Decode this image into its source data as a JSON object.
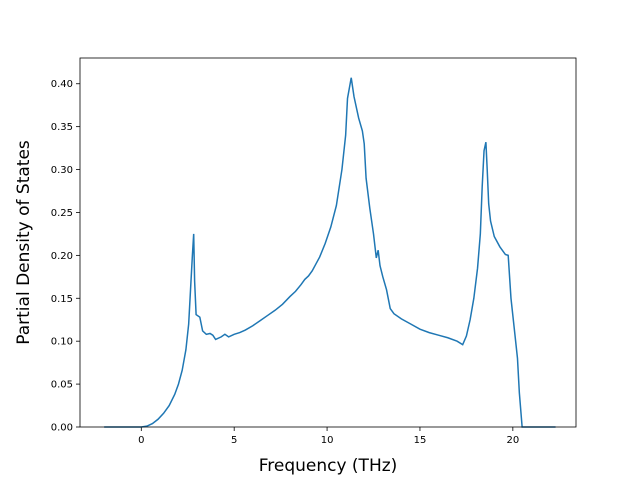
{
  "chart_data": {
    "type": "line",
    "title": "",
    "xlabel": "Frequency (THz)",
    "ylabel": "Partial Density of States",
    "xlim": [
      -3.3,
      23.4
    ],
    "ylim": [
      0.0,
      0.43
    ],
    "xticks": [
      0,
      5,
      10,
      15,
      20
    ],
    "yticks": [
      0.0,
      0.05,
      0.1,
      0.15,
      0.2,
      0.25,
      0.3,
      0.35,
      0.4
    ],
    "grid": false,
    "line_color": "#1f77b4",
    "series": [
      {
        "x": [
          -2.0,
          -1.0,
          0.0,
          0.3,
          0.6,
          0.9,
          1.2,
          1.5,
          1.8,
          2.0,
          2.2,
          2.4,
          2.55,
          2.65,
          2.75,
          2.82,
          2.87,
          2.95,
          3.15,
          3.3,
          3.5,
          3.7,
          3.85,
          4.0,
          4.3,
          4.5,
          4.7,
          5.0,
          5.3,
          5.6,
          6.0,
          6.4,
          6.8,
          7.2,
          7.6,
          8.0,
          8.3,
          8.6,
          8.8,
          9.0,
          9.2,
          9.4,
          9.6,
          9.9,
          10.2,
          10.5,
          10.8,
          11.0,
          11.1,
          11.3,
          11.45,
          11.7,
          11.9,
          12.0,
          12.1,
          12.3,
          12.5,
          12.65,
          12.75,
          12.85,
          13.0,
          13.2,
          13.4,
          13.6,
          14.0,
          14.5,
          15.0,
          15.5,
          16.0,
          16.5,
          17.0,
          17.3,
          17.5,
          17.7,
          17.9,
          18.1,
          18.25,
          18.35,
          18.45,
          18.55,
          18.62,
          18.7,
          18.8,
          19.0,
          19.3,
          19.6,
          19.75,
          19.9,
          20.1,
          20.25,
          20.35,
          20.5,
          21.0,
          22.3
        ],
        "y": [
          0.0,
          0.0,
          0.0,
          0.001,
          0.004,
          0.009,
          0.016,
          0.025,
          0.038,
          0.05,
          0.066,
          0.09,
          0.12,
          0.16,
          0.2,
          0.225,
          0.17,
          0.131,
          0.128,
          0.112,
          0.108,
          0.109,
          0.107,
          0.102,
          0.105,
          0.108,
          0.105,
          0.108,
          0.11,
          0.113,
          0.118,
          0.124,
          0.13,
          0.136,
          0.143,
          0.152,
          0.158,
          0.166,
          0.172,
          0.176,
          0.182,
          0.19,
          0.198,
          0.214,
          0.233,
          0.258,
          0.3,
          0.34,
          0.383,
          0.407,
          0.385,
          0.36,
          0.345,
          0.33,
          0.29,
          0.255,
          0.225,
          0.197,
          0.206,
          0.188,
          0.175,
          0.16,
          0.138,
          0.132,
          0.126,
          0.12,
          0.114,
          0.11,
          0.107,
          0.104,
          0.1,
          0.096,
          0.106,
          0.125,
          0.15,
          0.185,
          0.225,
          0.28,
          0.322,
          0.332,
          0.3,
          0.26,
          0.24,
          0.222,
          0.21,
          0.201,
          0.2,
          0.15,
          0.11,
          0.08,
          0.04,
          0.0,
          0.0,
          0.0
        ]
      }
    ]
  }
}
